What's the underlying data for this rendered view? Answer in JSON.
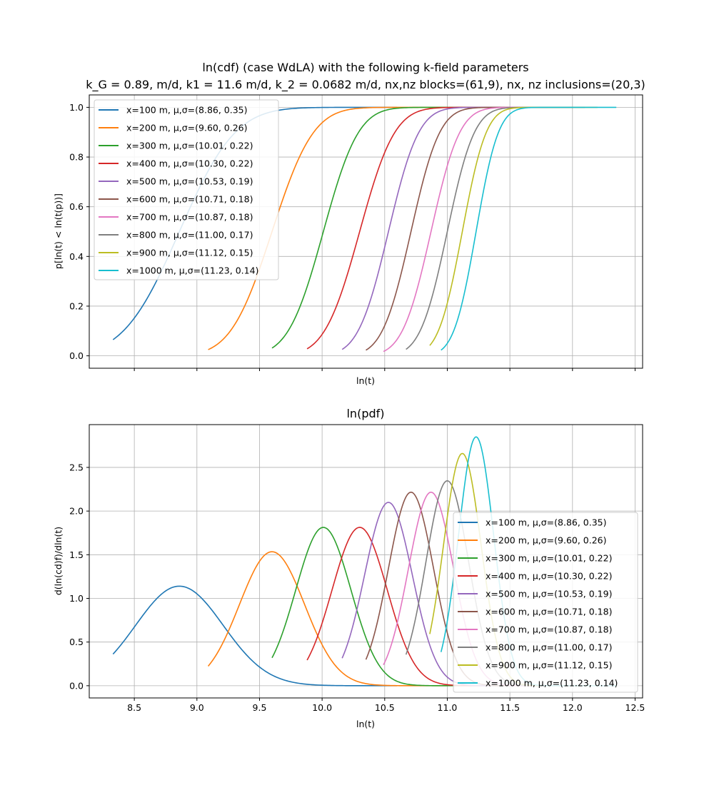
{
  "chart_data": [
    {
      "type": "line",
      "title": "ln(cdf) (case WdLA) with the following k-field parameters",
      "subtitle": "k_G = 0.89, m/d, k1 = 11.6 m/d, k_2 = 0.0682 m/d, nx,nz blocks=(61,9), nx, nz inclusions=(20,3)",
      "xlabel": "ln(t)",
      "ylabel": "p[ln(t) < ln(t(p))]",
      "xlim": [
        8.14,
        12.56
      ],
      "ylim": [
        -0.05,
        1.05
      ],
      "x_ticks": [
        8.5,
        9.0,
        9.5,
        10.0,
        10.5,
        11.0,
        11.5,
        12.0,
        12.5
      ],
      "y_ticks": [
        "0.0",
        "0.2",
        "0.4",
        "0.6",
        "0.8",
        "1.0"
      ],
      "grid": true,
      "legend_position": "upper-left",
      "series": [
        {
          "name": "x=100 m, μ,σ=(8.86, 0.35)",
          "mu": 8.86,
          "sigma": 0.35,
          "x_range": [
            8.33,
            10.6
          ],
          "color": "#1f77b4"
        },
        {
          "name": "x=200 m, μ,σ=(9.60, 0.26)",
          "mu": 9.6,
          "sigma": 0.26,
          "x_range": [
            9.09,
            11.0
          ],
          "color": "#ff7f0e"
        },
        {
          "name": "x=300 m, μ,σ=(10.01, 0.22)",
          "mu": 10.01,
          "sigma": 0.22,
          "x_range": [
            9.6,
            11.5
          ],
          "color": "#2ca02c"
        },
        {
          "name": "x=400 m, μ,σ=(10.30, 0.22)",
          "mu": 10.3,
          "sigma": 0.22,
          "x_range": [
            9.88,
            11.7
          ],
          "color": "#d62728"
        },
        {
          "name": "x=500 m, μ,σ=(10.53, 0.19)",
          "mu": 10.53,
          "sigma": 0.19,
          "x_range": [
            10.16,
            11.8
          ],
          "color": "#9467bd"
        },
        {
          "name": "x=600 m, μ,σ=(10.71, 0.18)",
          "mu": 10.71,
          "sigma": 0.18,
          "x_range": [
            10.35,
            11.9
          ],
          "color": "#8c564b"
        },
        {
          "name": "x=700 m, μ,σ=(10.87, 0.18)",
          "mu": 10.87,
          "sigma": 0.18,
          "x_range": [
            10.49,
            12.0
          ],
          "color": "#e377c2"
        },
        {
          "name": "x=800 m, μ,σ=(11.00, 0.17)",
          "mu": 11.0,
          "sigma": 0.17,
          "x_range": [
            10.67,
            12.1
          ],
          "color": "#7f7f7f"
        },
        {
          "name": "x=900 m, μ,σ=(11.12, 0.15)",
          "mu": 11.12,
          "sigma": 0.15,
          "x_range": [
            10.86,
            12.2
          ],
          "color": "#bcbd22"
        },
        {
          "name": "x=1000 m, μ,σ=(11.23, 0.14)",
          "mu": 11.23,
          "sigma": 0.14,
          "x_range": [
            10.95,
            12.35
          ],
          "color": "#17becf"
        }
      ]
    },
    {
      "type": "line",
      "title": "ln(pdf)",
      "xlabel": "ln(t)",
      "ylabel": "d(ln(cd)f)/dln(t)",
      "xlim": [
        8.14,
        12.56
      ],
      "ylim": [
        -0.14,
        2.99
      ],
      "x_ticks": [
        "8.5",
        "9.0",
        "9.5",
        "10.0",
        "10.5",
        "11.0",
        "11.5",
        "12.0",
        "12.5"
      ],
      "y_ticks": [
        "0.0",
        "0.5",
        "1.0",
        "1.5",
        "2.0",
        "2.5"
      ],
      "grid": true,
      "legend_position": "lower-right",
      "series": [
        {
          "name": "x=100 m, μ,σ=(8.86, 0.35)",
          "mu": 8.86,
          "sigma": 0.35,
          "x_range": [
            8.33,
            10.6
          ],
          "color": "#1f77b4"
        },
        {
          "name": "x=200 m, μ,σ=(9.60, 0.26)",
          "mu": 9.6,
          "sigma": 0.26,
          "x_range": [
            9.09,
            11.0
          ],
          "color": "#ff7f0e"
        },
        {
          "name": "x=300 m, μ,σ=(10.01, 0.22)",
          "mu": 10.01,
          "sigma": 0.22,
          "x_range": [
            9.6,
            11.5
          ],
          "color": "#2ca02c"
        },
        {
          "name": "x=400 m, μ,σ=(10.30, 0.22)",
          "mu": 10.3,
          "sigma": 0.22,
          "x_range": [
            9.88,
            11.7
          ],
          "color": "#d62728"
        },
        {
          "name": "x=500 m, μ,σ=(10.53, 0.19)",
          "mu": 10.53,
          "sigma": 0.19,
          "x_range": [
            10.16,
            11.8
          ],
          "color": "#9467bd"
        },
        {
          "name": "x=600 m, μ,σ=(10.71, 0.18)",
          "mu": 10.71,
          "sigma": 0.18,
          "x_range": [
            10.35,
            11.9
          ],
          "color": "#8c564b"
        },
        {
          "name": "x=700 m, μ,σ=(10.87, 0.18)",
          "mu": 10.87,
          "sigma": 0.18,
          "x_range": [
            10.49,
            12.0
          ],
          "color": "#e377c2"
        },
        {
          "name": "x=800 m, μ,σ=(11.00, 0.17)",
          "mu": 11.0,
          "sigma": 0.17,
          "x_range": [
            10.67,
            12.1
          ],
          "color": "#7f7f7f"
        },
        {
          "name": "x=900 m, μ,σ=(11.12, 0.15)",
          "mu": 11.12,
          "sigma": 0.15,
          "x_range": [
            10.86,
            12.2
          ],
          "color": "#bcbd22"
        },
        {
          "name": "x=1000 m, μ,σ=(11.23, 0.14)",
          "mu": 11.23,
          "sigma": 0.14,
          "x_range": [
            10.95,
            12.35
          ],
          "color": "#17becf"
        }
      ]
    }
  ]
}
